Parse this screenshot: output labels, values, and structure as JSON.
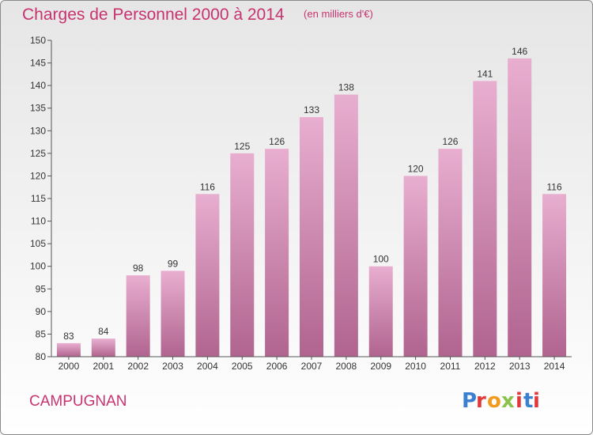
{
  "header": {
    "title": "Charges de Personnel 2000 à 2014",
    "unit": "(en milliers d'€)"
  },
  "footer": {
    "commune": "CAMPUGNAN",
    "brand": "Proxiti",
    "brand_colors": [
      "#3a7fd0",
      "#e2383a",
      "#f09a1e",
      "#8bc34a",
      "#e2383a",
      "#3a7fd0",
      "#e2383a"
    ]
  },
  "colors": {
    "accent": "#c8336f",
    "bar_top": "#e8aed0",
    "bar_bottom": "#b0648f",
    "axis": "#555555"
  },
  "chart_data": {
    "type": "bar",
    "title": "Charges de Personnel 2000 à 2014",
    "subtitle": "(en milliers d'€)",
    "xlabel": "",
    "ylabel": "",
    "categories": [
      "2000",
      "2001",
      "2002",
      "2003",
      "2004",
      "2005",
      "2006",
      "2007",
      "2008",
      "2009",
      "2010",
      "2011",
      "2012",
      "2013",
      "2014"
    ],
    "values": [
      83,
      84,
      98,
      99,
      116,
      125,
      126,
      133,
      138,
      100,
      120,
      126,
      141,
      146,
      116
    ],
    "ylim": [
      80,
      150
    ],
    "yticks": [
      80,
      85,
      90,
      95,
      100,
      105,
      110,
      115,
      120,
      125,
      130,
      135,
      140,
      145,
      150
    ],
    "grid": false,
    "data_labels": true
  }
}
